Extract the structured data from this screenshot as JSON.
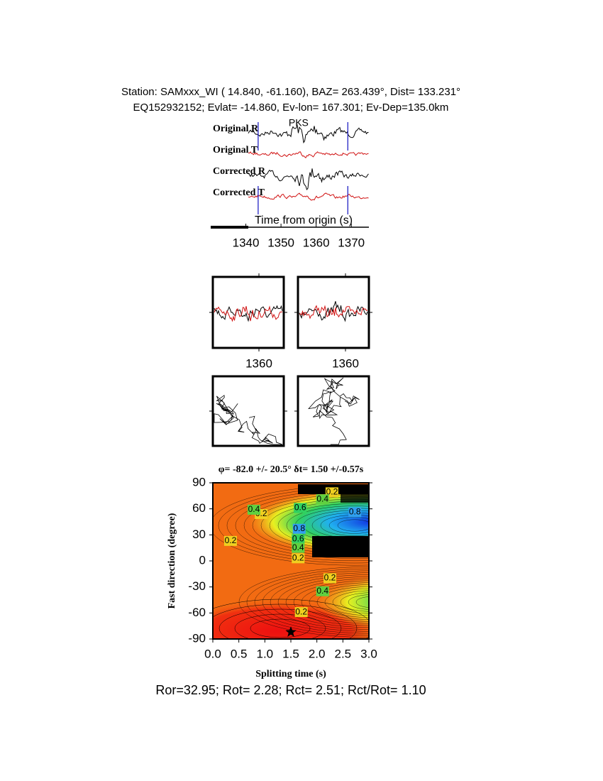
{
  "header": {
    "line1": "Station: SAMxxx_WI (  14.840,  -61.160), BAZ=  263.439°, Dist=  133.231°",
    "line2": "EQ152932152; Evlat= -14.860, Ev-lon= 167.301; Ev-Dep=135.0km"
  },
  "chart_data": [
    {
      "type": "waveform",
      "traces": [
        {
          "name": "Original R",
          "color": "#000000"
        },
        {
          "name": "Original T",
          "color": "#d01010"
        },
        {
          "name": "Corrected R",
          "color": "#000000"
        },
        {
          "name": "Corrected T",
          "color": "#d01010"
        }
      ],
      "annotation": {
        "text": "PKS",
        "x": 1355,
        "color": "#e01010"
      },
      "window": [
        1343.5,
        1369
      ],
      "window_color": "#1010c0",
      "xlabel": "Time from origin (s)",
      "xlim": [
        1330,
        1375
      ],
      "xticks": [
        1340,
        1350,
        1360,
        1370
      ]
    },
    {
      "type": "waveform",
      "traces": [
        {
          "color": "#000000"
        },
        {
          "color": "#d01010"
        }
      ],
      "xlim": [
        1350.25,
        1365.25
      ],
      "xticks": [
        1360
      ]
    },
    {
      "type": "waveform",
      "traces": [
        {
          "color": "#000000"
        },
        {
          "color": "#d01010"
        }
      ],
      "xlim": [
        1349.95,
        1364.95
      ],
      "xticks": [
        1360
      ]
    },
    {
      "type": "particle-motion"
    },
    {
      "type": "particle-motion"
    },
    {
      "type": "contour",
      "title": "φ= -82.0 +/- 20.5° δt= 1.50 +/-0.57s",
      "xlabel": "Splitting time (s)",
      "ylabel": "Fast direction (degree)",
      "xlim": [
        0,
        3
      ],
      "ylim": [
        -90,
        90
      ],
      "xticks": [
        {
          "value": 0,
          "label": "0.0"
        },
        0.5,
        {
          "value": 1,
          "label": "1.0"
        },
        1.5,
        {
          "value": 2,
          "label": "2.0"
        },
        2.5,
        {
          "value": 3,
          "label": "3.0"
        }
      ],
      "yticks": [
        90,
        60,
        30,
        0,
        -30,
        -60,
        -90
      ],
      "contour_labels": [
        {
          "x": 0.93,
          "y": 54,
          "value": 0.2
        },
        {
          "x": 0.79,
          "y": 59,
          "value": 0.4
        },
        {
          "x": 2.29,
          "y": 79,
          "value": 0.2
        },
        {
          "x": 2.11,
          "y": 71,
          "value": 0.4
        },
        {
          "x": 1.68,
          "y": 61,
          "value": 0.6
        },
        {
          "x": 2.73,
          "y": 56,
          "value": 0.8
        },
        {
          "x": 1.66,
          "y": 37,
          "value": 0.8
        },
        {
          "x": 1.64,
          "y": 25,
          "value": 0.6
        },
        {
          "x": 1.64,
          "y": 15,
          "value": 0.4
        },
        {
          "x": 1.64,
          "y": 3,
          "value": 0.2
        },
        {
          "x": 0.34,
          "y": 23,
          "value": 0.2
        },
        {
          "x": 2.25,
          "y": -20,
          "value": 0.2
        },
        {
          "x": 2.11,
          "y": -35,
          "value": 0.4
        },
        {
          "x": 1.7,
          "y": -59,
          "value": 0.2
        }
      ],
      "best": {
        "x": 1.5,
        "y": -82
      }
    }
  ],
  "footer": "Ror=32.95; Rot= 2.28; Rct= 2.51; Rct/Rot= 1.10"
}
